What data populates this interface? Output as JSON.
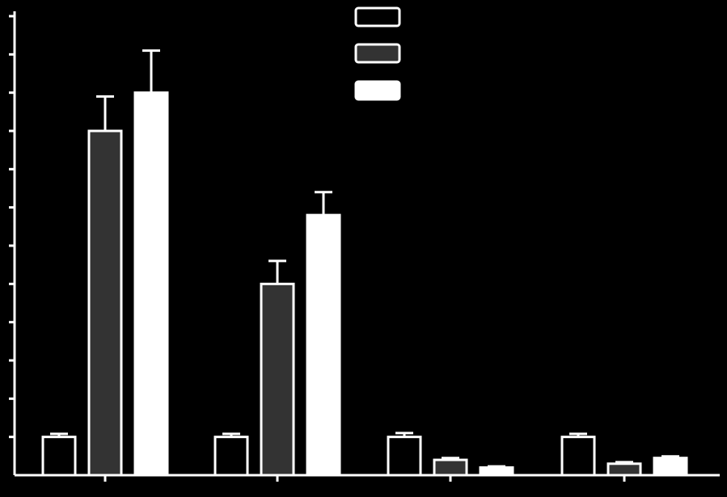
{
  "chart_data": {
    "type": "bar",
    "title": "",
    "xlabel": "",
    "ylabel": "",
    "categories": [
      "",
      "",
      "",
      ""
    ],
    "ylim": [
      0,
      12
    ],
    "y_tick_step": 1,
    "grid": false,
    "legend_placement": "top-center",
    "series": [
      {
        "name": "",
        "fill": "#000000",
        "stroke": "#ffffff",
        "values": [
          1.0,
          1.0,
          1.0,
          1.0
        ],
        "errors": [
          0.08,
          0.08,
          0.1,
          0.08
        ]
      },
      {
        "name": "",
        "fill": "#333333",
        "stroke": "#ffffff",
        "values": [
          9.0,
          5.0,
          0.4,
          0.3
        ],
        "errors": [
          0.9,
          0.6,
          0.05,
          0.04
        ]
      },
      {
        "name": "",
        "fill": "#ffffff",
        "stroke": "#ffffff",
        "values": [
          10.0,
          6.8,
          0.2,
          0.45
        ],
        "errors": [
          1.1,
          0.6,
          0.03,
          0.04
        ]
      }
    ]
  },
  "colors": {
    "background": "#000000",
    "axis": "#ffffff"
  }
}
